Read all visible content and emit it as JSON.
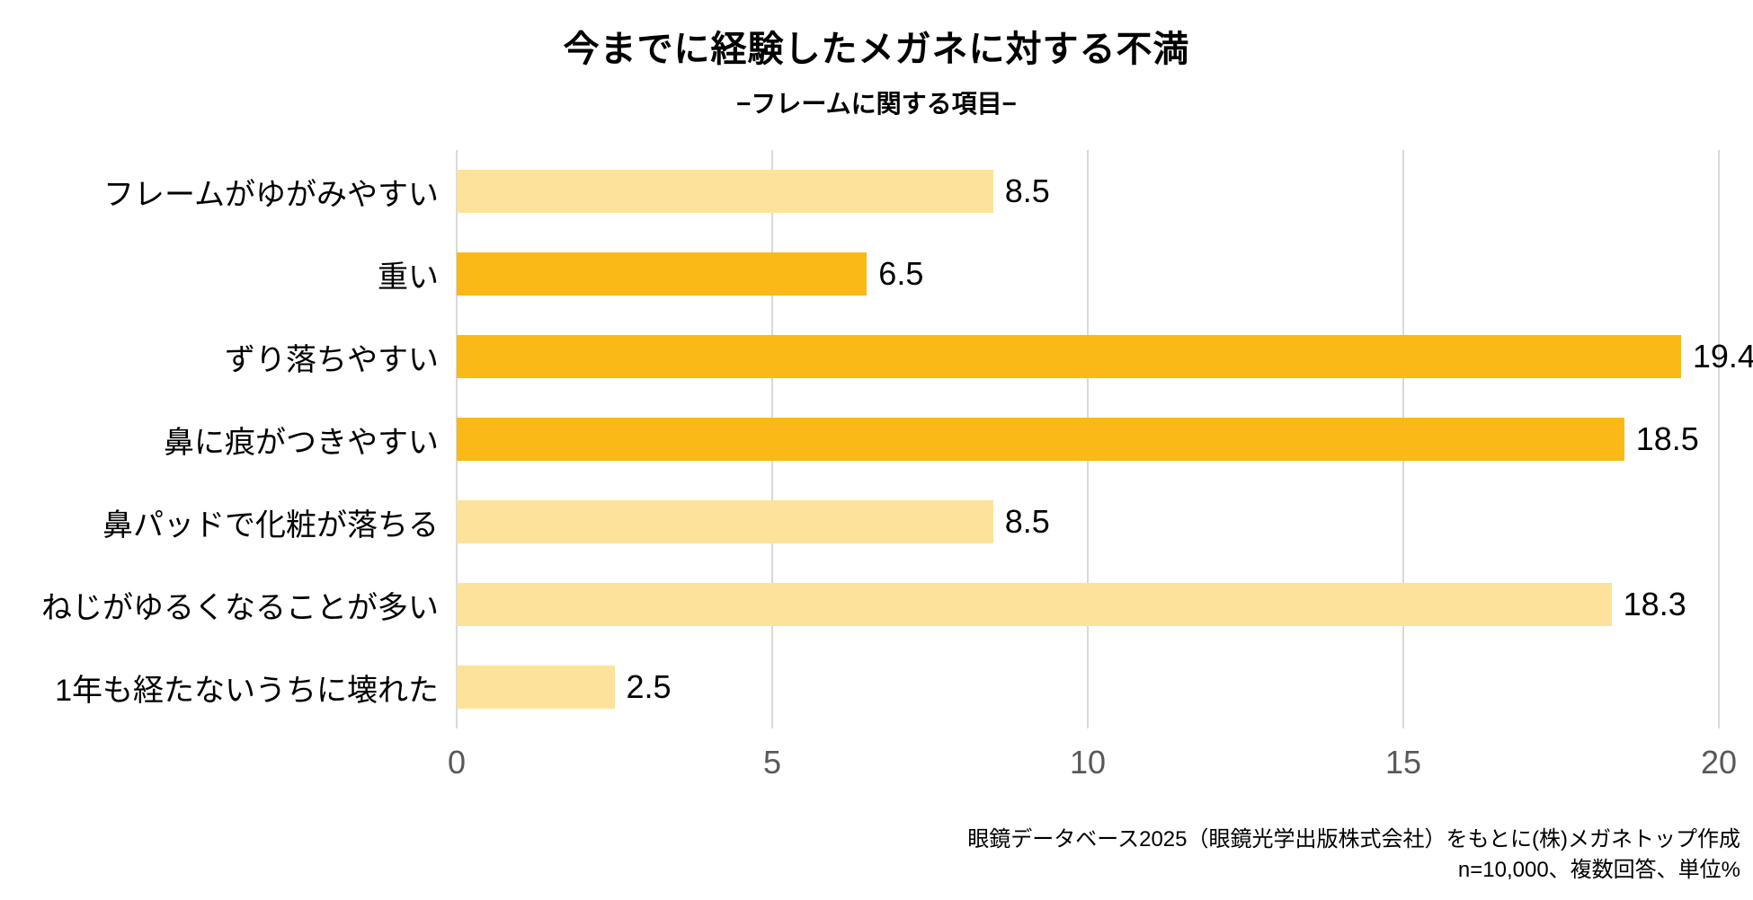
{
  "title": "今までに経験したメガネに対する不満",
  "subtitle": "−フレームに関する項目−",
  "footer": {
    "line1": "眼鏡データベース2025（眼鏡光学出版株式会社）をもとに(株)メガネトップ作成",
    "line2": "n=10,000、複数回答、単位%"
  },
  "colors": {
    "bar_strong": "#FBB917",
    "bar_light": "#FCE29B",
    "gridline": "#D9D9D9",
    "tick_text": "#595959",
    "label_text": "#000000"
  },
  "chart_data": {
    "type": "bar",
    "orientation": "horizontal",
    "title": "今までに経験したメガネに対する不満",
    "subtitle": "−フレームに関する項目−",
    "categories": [
      "フレームがゆがみやすい",
      "重い",
      "ずり落ちやすい",
      "鼻に痕がつきやすい",
      "鼻パッドで化粧が落ちる",
      "ねじがゆるくなることが多い",
      "1年も経たないうちに壊れた"
    ],
    "values": [
      8.5,
      6.5,
      19.4,
      18.5,
      8.5,
      18.3,
      2.5
    ],
    "value_labels": [
      "8.5",
      "6.5",
      "19.4",
      "18.5",
      "8.5",
      "18.3",
      "2.5"
    ],
    "bar_emphasis": [
      "light",
      "strong",
      "strong",
      "strong",
      "light",
      "light",
      "light"
    ],
    "xlim": [
      0,
      20
    ],
    "xticks": [
      0,
      5,
      10,
      15,
      20
    ],
    "grid": "vertical-gridlines",
    "legend": "none",
    "unit": "%",
    "source_note": "眼鏡データベース2025（眼鏡光学出版株式会社）をもとに(株)メガネトップ作成 n=10,000、複数回答、単位%"
  }
}
